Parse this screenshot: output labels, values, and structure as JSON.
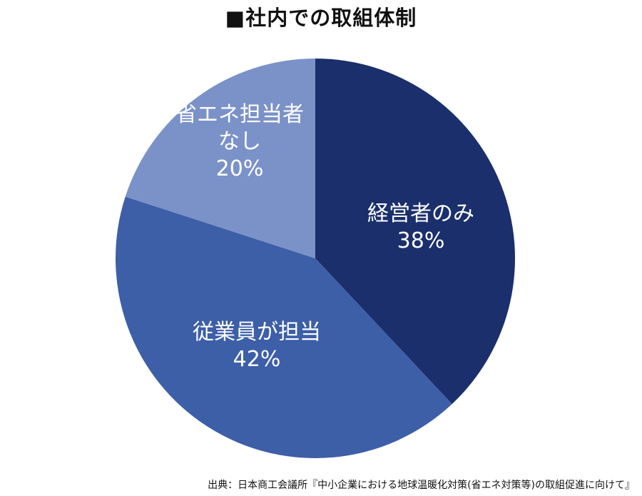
{
  "title": "■社内での取組体制",
  "source": "出典：日本商工会議所『中小企業における地球温暖化対策(省エネ対策等)の取組促進に向けて』",
  "chart_data": {
    "type": "pie",
    "title": "■社内での取組体制",
    "slices": [
      {
        "name": "経営者のみ",
        "value": 38,
        "label_lines": [
          "経営者のみ",
          "38%"
        ],
        "color": "#1a2f6b"
      },
      {
        "name": "従業員が担当",
        "value": 42,
        "label_lines": [
          "従業員が担当",
          "42%"
        ],
        "color": "#3d5fa8"
      },
      {
        "name": "省エネ担当者なし",
        "value": 20,
        "label_lines": [
          "省エネ担当者",
          "なし",
          "20%"
        ],
        "color": "#7b92c8"
      }
    ],
    "start": "12 o'clock",
    "direction": "clockwise"
  }
}
